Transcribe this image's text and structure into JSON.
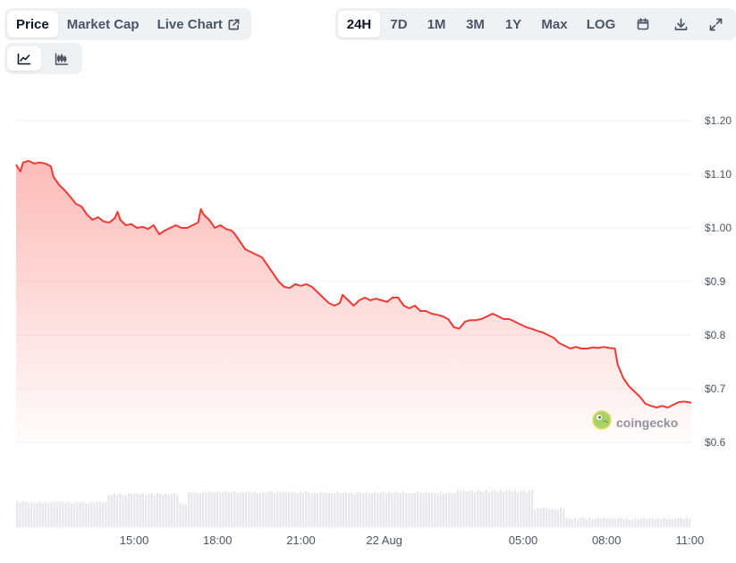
{
  "tabs_left": [
    {
      "label": "Price",
      "active": true
    },
    {
      "label": "Market Cap",
      "active": false
    },
    {
      "label": "Live Chart",
      "active": false,
      "icon": "external-link-icon"
    }
  ],
  "ranges": [
    {
      "label": "24H",
      "active": true
    },
    {
      "label": "7D",
      "active": false
    },
    {
      "label": "1M",
      "active": false
    },
    {
      "label": "3M",
      "active": false
    },
    {
      "label": "1Y",
      "active": false
    },
    {
      "label": "Max",
      "active": false
    },
    {
      "label": "LOG",
      "active": false
    }
  ],
  "toolbar_icons": [
    "calendar-icon",
    "download-icon",
    "fullscreen-icon"
  ],
  "view_toggle": [
    {
      "icon": "line-chart-icon",
      "active": true
    },
    {
      "icon": "candlestick-icon",
      "active": false
    }
  ],
  "watermark": "coingecko",
  "colors": {
    "line": "#ef3b36",
    "fill": "#fca5a1",
    "volume": "#e5e7eb",
    "grid": "#eef0f3"
  },
  "chart_data": {
    "type": "area",
    "y_ticks": [
      "$0.6",
      "$0.7",
      "$0.8",
      "$0.9",
      "$1.00",
      "$1.10",
      "$1.20"
    ],
    "ylim": [
      0.6,
      1.2
    ],
    "x_ticks": [
      {
        "label": "15:00",
        "h": 3
      },
      {
        "label": "18:00",
        "h": 6
      },
      {
        "label": "21:00",
        "h": 9
      },
      {
        "label": "22 Aug",
        "h": 12
      },
      {
        "label": "05:00",
        "h": 17
      },
      {
        "label": "08:00",
        "h": 20
      },
      {
        "label": "11:00",
        "h": 23
      }
    ],
    "x_range_hours": [
      -1.25,
      23.05
    ],
    "price_series": [
      [
        -1.25,
        1.118
      ],
      [
        -1.1,
        1.105
      ],
      [
        -1.0,
        1.122
      ],
      [
        -0.8,
        1.125
      ],
      [
        -0.6,
        1.12
      ],
      [
        -0.4,
        1.122
      ],
      [
        -0.2,
        1.12
      ],
      [
        0.0,
        1.115
      ],
      [
        0.1,
        1.095
      ],
      [
        0.3,
        1.08
      ],
      [
        0.5,
        1.07
      ],
      [
        0.7,
        1.058
      ],
      [
        0.9,
        1.045
      ],
      [
        1.1,
        1.04
      ],
      [
        1.3,
        1.025
      ],
      [
        1.5,
        1.015
      ],
      [
        1.7,
        1.02
      ],
      [
        1.9,
        1.012
      ],
      [
        2.1,
        1.01
      ],
      [
        2.3,
        1.018
      ],
      [
        2.4,
        1.03
      ],
      [
        2.5,
        1.015
      ],
      [
        2.7,
        1.005
      ],
      [
        2.9,
        1.007
      ],
      [
        3.1,
        1.0
      ],
      [
        3.3,
        1.002
      ],
      [
        3.5,
        0.998
      ],
      [
        3.7,
        1.005
      ],
      [
        3.9,
        0.988
      ],
      [
        4.1,
        0.995
      ],
      [
        4.3,
        1.0
      ],
      [
        4.5,
        1.005
      ],
      [
        4.7,
        1.0
      ],
      [
        4.9,
        1.0
      ],
      [
        5.1,
        1.005
      ],
      [
        5.3,
        1.01
      ],
      [
        5.4,
        1.035
      ],
      [
        5.5,
        1.025
      ],
      [
        5.7,
        1.015
      ],
      [
        5.9,
        1.0
      ],
      [
        6.1,
        1.005
      ],
      [
        6.3,
        0.998
      ],
      [
        6.5,
        0.995
      ],
      [
        6.6,
        0.99
      ],
      [
        6.8,
        0.975
      ],
      [
        7.0,
        0.96
      ],
      [
        7.2,
        0.955
      ],
      [
        7.4,
        0.95
      ],
      [
        7.6,
        0.945
      ],
      [
        7.8,
        0.93
      ],
      [
        8.0,
        0.915
      ],
      [
        8.2,
        0.9
      ],
      [
        8.4,
        0.89
      ],
      [
        8.6,
        0.888
      ],
      [
        8.8,
        0.895
      ],
      [
        9.0,
        0.892
      ],
      [
        9.2,
        0.895
      ],
      [
        9.4,
        0.89
      ],
      [
        9.6,
        0.88
      ],
      [
        9.8,
        0.87
      ],
      [
        10.0,
        0.86
      ],
      [
        10.2,
        0.855
      ],
      [
        10.4,
        0.86
      ],
      [
        10.5,
        0.875
      ],
      [
        10.7,
        0.865
      ],
      [
        10.9,
        0.855
      ],
      [
        11.1,
        0.865
      ],
      [
        11.3,
        0.87
      ],
      [
        11.5,
        0.865
      ],
      [
        11.7,
        0.868
      ],
      [
        11.9,
        0.865
      ],
      [
        12.1,
        0.862
      ],
      [
        12.3,
        0.87
      ],
      [
        12.5,
        0.87
      ],
      [
        12.7,
        0.855
      ],
      [
        12.9,
        0.85
      ],
      [
        13.1,
        0.855
      ],
      [
        13.3,
        0.845
      ],
      [
        13.5,
        0.845
      ],
      [
        13.7,
        0.84
      ],
      [
        13.9,
        0.838
      ],
      [
        14.1,
        0.835
      ],
      [
        14.3,
        0.83
      ],
      [
        14.5,
        0.815
      ],
      [
        14.7,
        0.812
      ],
      [
        14.9,
        0.825
      ],
      [
        15.1,
        0.828
      ],
      [
        15.3,
        0.828
      ],
      [
        15.5,
        0.83
      ],
      [
        15.7,
        0.835
      ],
      [
        15.9,
        0.84
      ],
      [
        16.1,
        0.835
      ],
      [
        16.3,
        0.83
      ],
      [
        16.5,
        0.83
      ],
      [
        16.7,
        0.825
      ],
      [
        16.9,
        0.82
      ],
      [
        17.1,
        0.815
      ],
      [
        17.3,
        0.812
      ],
      [
        17.5,
        0.808
      ],
      [
        17.7,
        0.805
      ],
      [
        17.9,
        0.8
      ],
      [
        18.1,
        0.795
      ],
      [
        18.3,
        0.785
      ],
      [
        18.5,
        0.78
      ],
      [
        18.7,
        0.775
      ],
      [
        18.9,
        0.778
      ],
      [
        19.1,
        0.775
      ],
      [
        19.3,
        0.775
      ],
      [
        19.5,
        0.777
      ],
      [
        19.7,
        0.776
      ],
      [
        19.9,
        0.778
      ],
      [
        20.1,
        0.776
      ],
      [
        20.3,
        0.775
      ],
      [
        20.4,
        0.745
      ],
      [
        20.6,
        0.72
      ],
      [
        20.8,
        0.705
      ],
      [
        21.0,
        0.695
      ],
      [
        21.2,
        0.685
      ],
      [
        21.4,
        0.672
      ],
      [
        21.6,
        0.668
      ],
      [
        21.8,
        0.665
      ],
      [
        22.0,
        0.668
      ],
      [
        22.2,
        0.665
      ],
      [
        22.4,
        0.67
      ],
      [
        22.6,
        0.675
      ],
      [
        22.8,
        0.676
      ],
      [
        23.05,
        0.674
      ]
    ],
    "volume_levels": [
      {
        "from": -1.25,
        "to": 2.0,
        "level": 0.4
      },
      {
        "from": 2.0,
        "to": 4.6,
        "level": 0.53
      },
      {
        "from": 4.6,
        "to": 4.85,
        "level": 0.38
      },
      {
        "from": 4.85,
        "to": 9.2,
        "level": 0.56
      },
      {
        "from": 9.2,
        "to": 14.6,
        "level": 0.55
      },
      {
        "from": 14.6,
        "to": 17.3,
        "level": 0.58
      },
      {
        "from": 17.3,
        "to": 18.5,
        "level": 0.3
      },
      {
        "from": 18.5,
        "to": 23.05,
        "level": 0.14
      }
    ]
  }
}
